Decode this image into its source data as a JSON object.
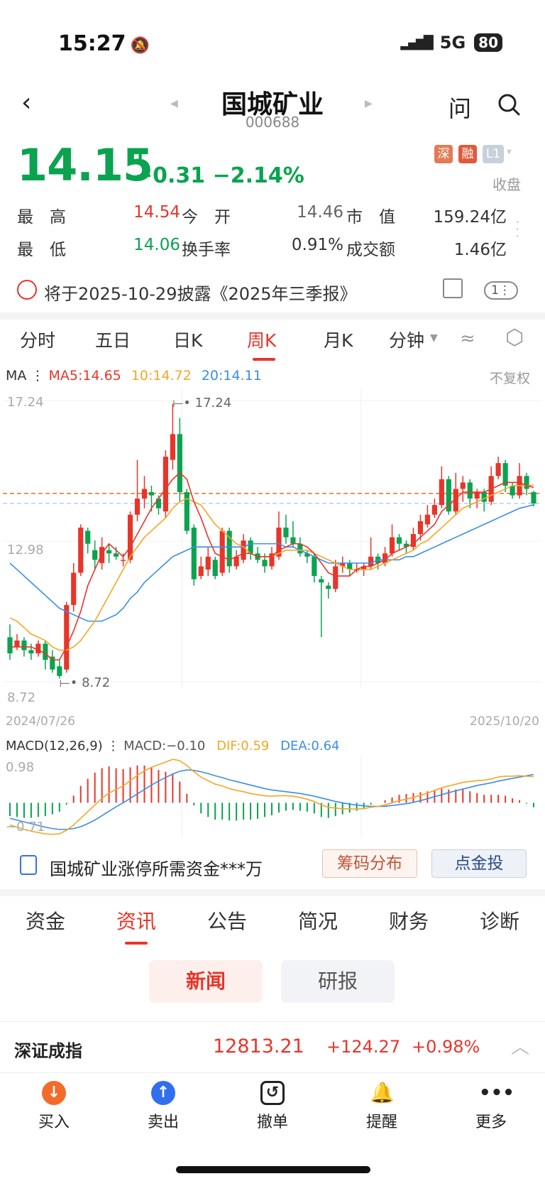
{
  "status_bar": {
    "time": "15:27",
    "network": "5G",
    "battery": "80"
  },
  "header": {
    "name": "国城矿业",
    "code": "000688",
    "ask_label": "问"
  },
  "quote": {
    "price": "14.15",
    "change": "−0.31",
    "change_pct": "−2.14%",
    "badges": [
      "深",
      "融",
      "L1"
    ],
    "market_state": "收盘",
    "stats": [
      {
        "label": "最　高",
        "value": "14.54",
        "color": "red"
      },
      {
        "label": "今　开",
        "value": "14.46",
        "color": "gray"
      },
      {
        "label": "市　值",
        "value": "159.24亿",
        "color": "dark"
      },
      {
        "label": "最　低",
        "value": "14.06",
        "color": "green"
      },
      {
        "label": "换手率",
        "value": "0.91%",
        "color": "dark"
      },
      {
        "label": "成交额",
        "value": "1.46亿",
        "color": "dark"
      }
    ]
  },
  "notice": {
    "text": "将于2025-10-29披露《2025年三季报》",
    "count_badge": "1"
  },
  "chart_tabs": [
    {
      "label": "分时"
    },
    {
      "label": "五日"
    },
    {
      "label": "日K"
    },
    {
      "label": "周K"
    },
    {
      "label": "月K"
    },
    {
      "label": "分钟"
    }
  ],
  "chart_tab_active": "周K",
  "ma_legend": {
    "prefix": "MA",
    "ma5": "MA5:14.65",
    "ma10": "10:14.72",
    "ma20": "20:14.11",
    "adjust": "不复权"
  },
  "macd_legend": {
    "prefix": "MACD(12,26,9)",
    "macd": "MACD:−0.10",
    "dif": "DIF:0.59",
    "dea": "DEA:0.64",
    "top_label": "0.98",
    "bottom_label": "−0.71"
  },
  "colors": {
    "up": "#e8352a",
    "down": "#0aa34f",
    "ma5": "#e8352a",
    "ma10": "#f5a623",
    "ma20": "#3a8ee6"
  },
  "chart_data": {
    "type": "candlestick",
    "y_labels": [
      "17.24",
      "12.98",
      "8.72"
    ],
    "ylim": [
      8.72,
      17.24
    ],
    "max_marker": "17.24",
    "min_marker": "8.72",
    "date_start": "2024/07/26",
    "date_end": "2025/10/20",
    "candles": [
      [
        10.0,
        9.5,
        10.4,
        9.3
      ],
      [
        9.7,
        9.9,
        10.1,
        9.6
      ],
      [
        9.9,
        9.6,
        10.0,
        9.4
      ],
      [
        9.6,
        9.5,
        9.8,
        9.3
      ],
      [
        9.5,
        9.8,
        9.9,
        9.4
      ],
      [
        9.8,
        9.3,
        9.9,
        9.0
      ],
      [
        9.4,
        9.0,
        9.6,
        8.9
      ],
      [
        9.1,
        8.8,
        9.3,
        8.72
      ],
      [
        9.0,
        11.0,
        11.1,
        8.9
      ],
      [
        11.0,
        12.0,
        12.3,
        10.8
      ],
      [
        12.0,
        13.4,
        13.5,
        11.9
      ],
      [
        13.3,
        12.9,
        13.4,
        12.6
      ],
      [
        12.7,
        12.4,
        13.0,
        12.1
      ],
      [
        12.3,
        12.8,
        13.1,
        12.1
      ],
      [
        12.7,
        12.6,
        12.9,
        12.3
      ],
      [
        12.6,
        12.5,
        12.8,
        12.4
      ],
      [
        12.4,
        12.4,
        12.6,
        12.2
      ],
      [
        12.4,
        13.8,
        13.9,
        12.3
      ],
      [
        13.8,
        14.3,
        15.5,
        13.6
      ],
      [
        14.3,
        14.6,
        15.0,
        14.0
      ],
      [
        14.5,
        14.4,
        14.7,
        13.9
      ],
      [
        14.3,
        14.0,
        14.4,
        13.8
      ],
      [
        13.9,
        15.6,
        15.8,
        13.7
      ],
      [
        15.5,
        16.3,
        17.24,
        15.2
      ],
      [
        16.3,
        14.5,
        16.8,
        14.2
      ],
      [
        14.5,
        13.3,
        14.6,
        13.2
      ],
      [
        13.4,
        11.8,
        13.5,
        11.6
      ],
      [
        11.9,
        12.2,
        12.5,
        11.8
      ],
      [
        12.1,
        12.5,
        12.8,
        11.9
      ],
      [
        12.4,
        11.9,
        12.5,
        11.8
      ],
      [
        12.0,
        13.3,
        13.4,
        11.9
      ],
      [
        13.3,
        12.2,
        13.4,
        12.0
      ],
      [
        12.2,
        12.5,
        12.7,
        12.1
      ],
      [
        12.4,
        13.0,
        13.2,
        12.3
      ],
      [
        13.0,
        12.6,
        13.1,
        12.4
      ],
      [
        12.6,
        12.4,
        12.8,
        12.3
      ],
      [
        12.4,
        12.2,
        12.6,
        12.0
      ],
      [
        12.2,
        12.6,
        12.8,
        12.1
      ],
      [
        12.5,
        13.4,
        13.9,
        12.4
      ],
      [
        13.4,
        13.1,
        13.8,
        12.9
      ],
      [
        13.1,
        12.9,
        13.6,
        12.8
      ],
      [
        12.9,
        12.6,
        13.1,
        12.5
      ],
      [
        12.6,
        12.5,
        12.7,
        12.3
      ],
      [
        12.5,
        11.9,
        12.6,
        11.7
      ],
      [
        11.8,
        11.7,
        11.9,
        10.0
      ],
      [
        11.6,
        11.5,
        11.7,
        11.2
      ],
      [
        11.5,
        12.2,
        12.4,
        11.4
      ],
      [
        12.2,
        12.3,
        12.5,
        12.0
      ],
      [
        12.3,
        12.1,
        12.4,
        11.9
      ],
      [
        12.1,
        12.1,
        12.3,
        12.0
      ],
      [
        12.1,
        12.2,
        12.3,
        11.9
      ],
      [
        12.2,
        12.5,
        13.1,
        12.1
      ],
      [
        12.5,
        12.3,
        12.6,
        12.1
      ],
      [
        12.3,
        12.6,
        12.8,
        12.2
      ],
      [
        12.6,
        13.1,
        13.5,
        12.5
      ],
      [
        13.1,
        12.9,
        13.2,
        12.7
      ],
      [
        12.9,
        12.8,
        13.0,
        12.6
      ],
      [
        12.8,
        13.2,
        13.4,
        12.7
      ],
      [
        13.2,
        13.6,
        13.8,
        13.0
      ],
      [
        13.5,
        13.8,
        14.1,
        13.4
      ],
      [
        13.8,
        14.1,
        14.3,
        13.7
      ],
      [
        14.1,
        14.9,
        15.3,
        14.0
      ],
      [
        14.9,
        13.9,
        15.0,
        13.8
      ],
      [
        13.9,
        14.6,
        15.1,
        13.8
      ],
      [
        14.6,
        14.8,
        15.0,
        14.2
      ],
      [
        14.8,
        14.3,
        14.9,
        14.0
      ],
      [
        14.3,
        14.5,
        14.6,
        14.0
      ],
      [
        14.5,
        14.2,
        14.6,
        13.9
      ],
      [
        14.2,
        15.0,
        15.3,
        14.1
      ],
      [
        15.0,
        15.4,
        15.6,
        14.9
      ],
      [
        15.4,
        14.7,
        15.5,
        14.5
      ],
      [
        14.7,
        14.4,
        14.8,
        14.3
      ],
      [
        14.4,
        15.0,
        15.4,
        14.3
      ],
      [
        15.0,
        14.6,
        15.1,
        14.4
      ],
      [
        14.5,
        14.15,
        14.54,
        14.06
      ]
    ],
    "ma5": [
      9.7,
      9.7,
      9.7,
      9.7,
      9.6,
      9.5,
      9.3,
      9.3,
      9.7,
      10.2,
      10.8,
      11.6,
      12.1,
      12.6,
      12.9,
      12.7,
      12.5,
      12.8,
      13.2,
      13.6,
      14.0,
      14.3,
      14.6,
      14.9,
      15.1,
      14.9,
      14.2,
      13.7,
      13.1,
      12.6,
      12.5,
      12.4,
      12.5,
      12.6,
      12.6,
      12.5,
      12.5,
      12.5,
      12.7,
      12.8,
      12.9,
      12.9,
      12.8,
      12.6,
      12.3,
      12.0,
      11.9,
      11.9,
      11.9,
      12.1,
      12.2,
      12.2,
      12.3,
      12.4,
      12.6,
      12.7,
      12.8,
      12.9,
      13.1,
      13.3,
      13.5,
      13.9,
      14.1,
      14.3,
      14.5,
      14.5,
      14.5,
      14.5,
      14.6,
      14.7,
      14.8,
      14.8,
      14.8,
      14.7,
      14.65
    ],
    "ma10": [
      10.6,
      10.5,
      10.3,
      10.1,
      10.0,
      9.9,
      9.7,
      9.6,
      9.6,
      9.7,
      9.9,
      10.2,
      10.5,
      10.9,
      11.3,
      11.7,
      12.1,
      12.5,
      12.8,
      13.1,
      13.3,
      13.5,
      13.7,
      14.0,
      14.2,
      14.3,
      14.2,
      14.1,
      13.8,
      13.5,
      13.3,
      13.1,
      12.9,
      12.8,
      12.6,
      12.5,
      12.5,
      12.5,
      12.6,
      12.7,
      12.7,
      12.7,
      12.7,
      12.6,
      12.5,
      12.4,
      12.3,
      12.2,
      12.1,
      12.1,
      12.1,
      12.1,
      12.2,
      12.3,
      12.4,
      12.5,
      12.6,
      12.7,
      12.9,
      13.0,
      13.2,
      13.4,
      13.6,
      13.8,
      14.0,
      14.1,
      14.2,
      14.3,
      14.4,
      14.5,
      14.6,
      14.7,
      14.7,
      14.7,
      14.72
    ],
    "ma20": [
      12.3,
      12.1,
      11.9,
      11.7,
      11.5,
      11.3,
      11.1,
      10.9,
      10.8,
      10.7,
      10.6,
      10.5,
      10.5,
      10.5,
      10.6,
      10.7,
      10.9,
      11.2,
      11.4,
      11.7,
      11.9,
      12.1,
      12.3,
      12.5,
      12.6,
      12.7,
      12.8,
      12.8,
      12.8,
      12.8,
      12.8,
      12.8,
      12.8,
      12.8,
      12.9,
      12.9,
      12.9,
      12.9,
      12.9,
      12.8,
      12.8,
      12.7,
      12.6,
      12.5,
      12.4,
      12.3,
      12.3,
      12.3,
      12.3,
      12.3,
      12.3,
      12.3,
      12.4,
      12.4,
      12.4,
      12.4,
      12.5,
      12.5,
      12.6,
      12.7,
      12.8,
      12.9,
      13.0,
      13.1,
      13.2,
      13.3,
      13.4,
      13.5,
      13.6,
      13.7,
      13.8,
      13.9,
      14.0,
      14.05,
      14.11
    ],
    "macd": {
      "ylim": [
        -0.71,
        0.98
      ],
      "dif": [
        -0.5,
        -0.55,
        -0.6,
        -0.64,
        -0.67,
        -0.7,
        -0.71,
        -0.7,
        -0.62,
        -0.5,
        -0.35,
        -0.2,
        -0.05,
        0.1,
        0.22,
        0.3,
        0.38,
        0.5,
        0.62,
        0.72,
        0.8,
        0.86,
        0.92,
        0.98,
        0.95,
        0.84,
        0.7,
        0.58,
        0.5,
        0.42,
        0.38,
        0.32,
        0.28,
        0.25,
        0.21,
        0.18,
        0.16,
        0.15,
        0.16,
        0.16,
        0.15,
        0.12,
        0.08,
        0.03,
        -0.05,
        -0.1,
        -0.12,
        -0.13,
        -0.14,
        -0.14,
        -0.13,
        -0.1,
        -0.08,
        -0.05,
        0.0,
        0.05,
        0.08,
        0.12,
        0.17,
        0.22,
        0.28,
        0.34,
        0.38,
        0.42,
        0.46,
        0.48,
        0.5,
        0.51,
        0.54,
        0.58,
        0.6,
        0.6,
        0.61,
        0.6,
        0.59
      ],
      "dea": [
        -0.35,
        -0.39,
        -0.43,
        -0.47,
        -0.51,
        -0.55,
        -0.58,
        -0.6,
        -0.6,
        -0.58,
        -0.54,
        -0.47,
        -0.39,
        -0.29,
        -0.19,
        -0.09,
        0.0,
        0.1,
        0.2,
        0.3,
        0.4,
        0.49,
        0.57,
        0.65,
        0.71,
        0.74,
        0.73,
        0.7,
        0.66,
        0.61,
        0.57,
        0.52,
        0.48,
        0.44,
        0.4,
        0.36,
        0.32,
        0.29,
        0.27,
        0.25,
        0.23,
        0.21,
        0.18,
        0.15,
        0.11,
        0.07,
        0.03,
        0.0,
        -0.03,
        -0.05,
        -0.07,
        -0.08,
        -0.08,
        -0.08,
        -0.06,
        -0.04,
        -0.02,
        0.01,
        0.05,
        0.09,
        0.14,
        0.18,
        0.23,
        0.27,
        0.31,
        0.35,
        0.39,
        0.42,
        0.45,
        0.49,
        0.52,
        0.55,
        0.58,
        0.61,
        0.64
      ]
    }
  },
  "promo": {
    "text": "国城矿业涨停所需资金***万",
    "btn_chips": "筹码分布",
    "btn_gold": "点金投"
  },
  "section_tabs": [
    {
      "label": "资金"
    },
    {
      "label": "资讯"
    },
    {
      "label": "公告"
    },
    {
      "label": "简况"
    },
    {
      "label": "财务"
    },
    {
      "label": "诊断"
    }
  ],
  "section_tab_active": "资讯",
  "sub_tabs": {
    "news": "新闻",
    "research": "研报"
  },
  "index_bar": {
    "name": "深证成指",
    "value": "12813.21",
    "change": "+124.27",
    "change_pct": "+0.98%"
  },
  "bottom_bar": [
    {
      "label": "买入",
      "icon": "arrow-down"
    },
    {
      "label": "卖出",
      "icon": "arrow-up"
    },
    {
      "label": "撤单",
      "icon": "undo"
    },
    {
      "label": "提醒",
      "icon": "bell"
    },
    {
      "label": "更多",
      "icon": "more"
    }
  ]
}
